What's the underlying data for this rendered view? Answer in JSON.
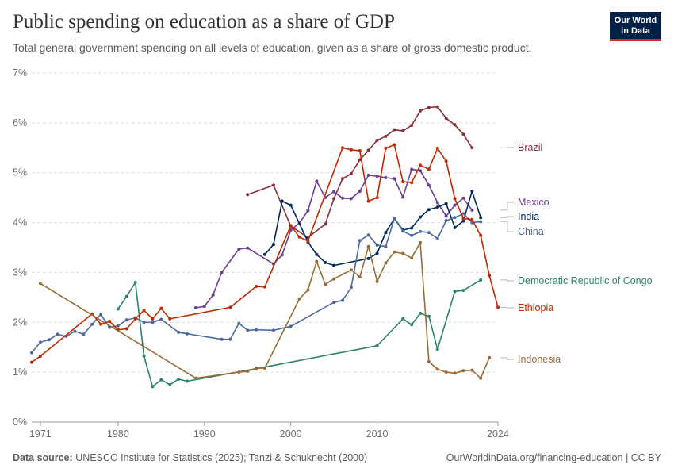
{
  "header": {
    "title": "Public spending on education as a share of GDP",
    "subtitle": "Total general government spending on all levels of education, given as a share of gross domestic product.",
    "logo_line1": "Our World",
    "logo_line2": "in Data"
  },
  "footer": {
    "source_label": "Data source:",
    "source_text": "UNESCO Institute for Statistics (2025); Tanzi & Schuknecht (2000)",
    "url": "OurWorldinData.org/financing-education | CC BY"
  },
  "chart_data": {
    "type": "line",
    "title": "Public spending on education as a share of GDP",
    "xlabel": "",
    "ylabel": "",
    "xlim": [
      1970,
      2024
    ],
    "ylim": [
      0,
      7
    ],
    "x_ticks": [
      "1971",
      "1980",
      "1990",
      "2000",
      "2010",
      "2024"
    ],
    "y_ticks": [
      "0%",
      "1%",
      "2%",
      "3%",
      "4%",
      "5%",
      "6%",
      "7%"
    ],
    "grid": "horizontal dashed",
    "legend": "right-side labels",
    "series": [
      {
        "name": "Brazil",
        "color": "#883039",
        "points": [
          [
            1995,
            4.56
          ],
          [
            1998,
            4.75
          ],
          [
            2000,
            3.93
          ],
          [
            2002,
            3.7
          ],
          [
            2004,
            3.97
          ],
          [
            2005,
            4.48
          ],
          [
            2006,
            4.88
          ],
          [
            2007,
            4.98
          ],
          [
            2008,
            5.26
          ],
          [
            2009,
            5.45
          ],
          [
            2010,
            5.65
          ],
          [
            2011,
            5.73
          ],
          [
            2012,
            5.86
          ],
          [
            2013,
            5.84
          ],
          [
            2014,
            5.95
          ],
          [
            2015,
            6.24
          ],
          [
            2016,
            6.31
          ],
          [
            2017,
            6.32
          ],
          [
            2018,
            6.09
          ],
          [
            2019,
            5.96
          ],
          [
            2020,
            5.77
          ],
          [
            2021,
            5.5
          ]
        ]
      },
      {
        "name": "Mexico",
        "color": "#6d3e91",
        "points": [
          [
            1989,
            2.29
          ],
          [
            1990,
            2.32
          ],
          [
            1991,
            2.55
          ],
          [
            1992,
            3.0
          ],
          [
            1994,
            3.47
          ],
          [
            1995,
            3.49
          ],
          [
            1998,
            3.17
          ],
          [
            1999,
            3.35
          ],
          [
            2000,
            3.85
          ],
          [
            2001,
            3.99
          ],
          [
            2002,
            4.24
          ],
          [
            2003,
            4.83
          ],
          [
            2004,
            4.5
          ],
          [
            2005,
            4.62
          ],
          [
            2006,
            4.49
          ],
          [
            2007,
            4.48
          ],
          [
            2008,
            4.63
          ],
          [
            2009,
            4.95
          ],
          [
            2010,
            4.93
          ],
          [
            2011,
            4.9
          ],
          [
            2012,
            4.88
          ],
          [
            2013,
            4.51
          ],
          [
            2014,
            5.07
          ],
          [
            2015,
            5.04
          ],
          [
            2016,
            4.75
          ],
          [
            2017,
            4.4
          ],
          [
            2018,
            4.13
          ],
          [
            2019,
            4.35
          ],
          [
            2020,
            4.49
          ],
          [
            2021,
            4.25
          ]
        ]
      },
      {
        "name": "India",
        "color": "#00295b",
        "points": [
          [
            1997,
            3.36
          ],
          [
            1998,
            3.56
          ],
          [
            1999,
            4.43
          ],
          [
            2000,
            4.35
          ],
          [
            2002,
            3.61
          ],
          [
            2003,
            3.36
          ],
          [
            2004,
            3.2
          ],
          [
            2005,
            3.14
          ],
          [
            2009,
            3.28
          ],
          [
            2010,
            3.38
          ],
          [
            2011,
            3.8
          ],
          [
            2012,
            4.08
          ],
          [
            2013,
            3.85
          ],
          [
            2014,
            3.89
          ],
          [
            2015,
            4.11
          ],
          [
            2016,
            4.26
          ],
          [
            2017,
            4.31
          ],
          [
            2018,
            4.38
          ],
          [
            2019,
            3.9
          ],
          [
            2020,
            4.03
          ],
          [
            2021,
            4.63
          ],
          [
            2022,
            4.1
          ]
        ]
      },
      {
        "name": "China",
        "color": "#4c6a9c",
        "points": [
          [
            1970,
            1.39
          ],
          [
            1971,
            1.6
          ],
          [
            1972,
            1.65
          ],
          [
            1973,
            1.76
          ],
          [
            1974,
            1.72
          ],
          [
            1975,
            1.82
          ],
          [
            1976,
            1.76
          ],
          [
            1977,
            1.96
          ],
          [
            1978,
            2.16
          ],
          [
            1979,
            1.9
          ],
          [
            1980,
            1.93
          ],
          [
            1981,
            2.05
          ],
          [
            1982,
            2.09
          ],
          [
            1983,
            2.0
          ],
          [
            1984,
            2.0
          ],
          [
            1985,
            2.06
          ],
          [
            1987,
            1.8
          ],
          [
            1988,
            1.77
          ],
          [
            1992,
            1.66
          ],
          [
            1993,
            1.66
          ],
          [
            1994,
            1.98
          ],
          [
            1995,
            1.84
          ],
          [
            1996,
            1.85
          ],
          [
            1998,
            1.84
          ],
          [
            2000,
            1.92
          ],
          [
            2005,
            2.4
          ],
          [
            2006,
            2.44
          ],
          [
            2007,
            2.7
          ],
          [
            2008,
            3.64
          ],
          [
            2009,
            3.75
          ],
          [
            2010,
            3.55
          ],
          [
            2011,
            3.52
          ],
          [
            2012,
            4.08
          ],
          [
            2013,
            3.83
          ],
          [
            2014,
            3.74
          ],
          [
            2015,
            3.82
          ],
          [
            2016,
            3.8
          ],
          [
            2017,
            3.68
          ],
          [
            2018,
            4.04
          ],
          [
            2019,
            4.1
          ],
          [
            2020,
            4.18
          ],
          [
            2021,
            4.0
          ],
          [
            2022,
            4.02
          ]
        ]
      },
      {
        "name": "Democratic Republic of Congo",
        "color": "#2c8465",
        "points": [
          [
            1980,
            2.27
          ],
          [
            1981,
            2.52
          ],
          [
            1982,
            2.8
          ],
          [
            1983,
            1.32
          ],
          [
            1984,
            0.71
          ],
          [
            1985,
            0.85
          ],
          [
            1986,
            0.75
          ],
          [
            1987,
            0.86
          ],
          [
            1988,
            0.82
          ],
          [
            1996,
            1.07
          ],
          [
            2010,
            1.53
          ],
          [
            2013,
            2.07
          ],
          [
            2014,
            1.95
          ],
          [
            2015,
            2.18
          ],
          [
            2016,
            2.12
          ],
          [
            2017,
            1.46
          ],
          [
            2019,
            2.62
          ],
          [
            2020,
            2.64
          ],
          [
            2022,
            2.85
          ]
        ]
      },
      {
        "name": "Ethiopia",
        "color": "#be2a00",
        "points": [
          [
            1970,
            1.2
          ],
          [
            1971,
            1.32
          ],
          [
            1977,
            2.17
          ],
          [
            1978,
            1.96
          ],
          [
            1979,
            2.02
          ],
          [
            1980,
            1.85
          ],
          [
            1981,
            1.87
          ],
          [
            1982,
            2.07
          ],
          [
            1983,
            2.24
          ],
          [
            1984,
            2.07
          ],
          [
            1985,
            2.28
          ],
          [
            1986,
            2.07
          ],
          [
            1993,
            2.3
          ],
          [
            1996,
            2.72
          ],
          [
            1997,
            2.71
          ],
          [
            2000,
            3.94
          ],
          [
            2001,
            3.71
          ],
          [
            2002,
            3.63
          ],
          [
            2006,
            5.5
          ],
          [
            2007,
            5.46
          ],
          [
            2008,
            5.44
          ],
          [
            2009,
            4.43
          ],
          [
            2010,
            4.5
          ],
          [
            2011,
            5.49
          ],
          [
            2012,
            5.56
          ],
          [
            2013,
            4.82
          ],
          [
            2014,
            4.8
          ],
          [
            2015,
            5.15
          ],
          [
            2016,
            5.07
          ],
          [
            2017,
            5.49
          ],
          [
            2018,
            5.23
          ],
          [
            2019,
            4.48
          ],
          [
            2020,
            4.08
          ],
          [
            2021,
            4.06
          ],
          [
            2022,
            3.74
          ],
          [
            2023,
            2.94
          ],
          [
            2024,
            2.3
          ]
        ]
      },
      {
        "name": "Indonesia",
        "color": "#996d39",
        "points": [
          [
            1971,
            2.78
          ],
          [
            1989,
            0.88
          ],
          [
            1994,
            1.0
          ],
          [
            1995,
            1.02
          ],
          [
            1996,
            1.08
          ],
          [
            1997,
            1.08
          ],
          [
            2001,
            2.47
          ],
          [
            2002,
            2.65
          ],
          [
            2003,
            3.22
          ],
          [
            2004,
            2.76
          ],
          [
            2005,
            2.87
          ],
          [
            2007,
            3.05
          ],
          [
            2008,
            2.91
          ],
          [
            2009,
            3.52
          ],
          [
            2010,
            2.82
          ],
          [
            2011,
            3.19
          ],
          [
            2012,
            3.41
          ],
          [
            2013,
            3.38
          ],
          [
            2014,
            3.29
          ],
          [
            2015,
            3.6
          ],
          [
            2016,
            1.21
          ],
          [
            2017,
            1.06
          ],
          [
            2018,
            1.0
          ],
          [
            2019,
            0.98
          ],
          [
            2020,
            1.03
          ],
          [
            2021,
            1.04
          ],
          [
            2022,
            0.88
          ],
          [
            2023,
            1.29
          ]
        ]
      }
    ]
  }
}
